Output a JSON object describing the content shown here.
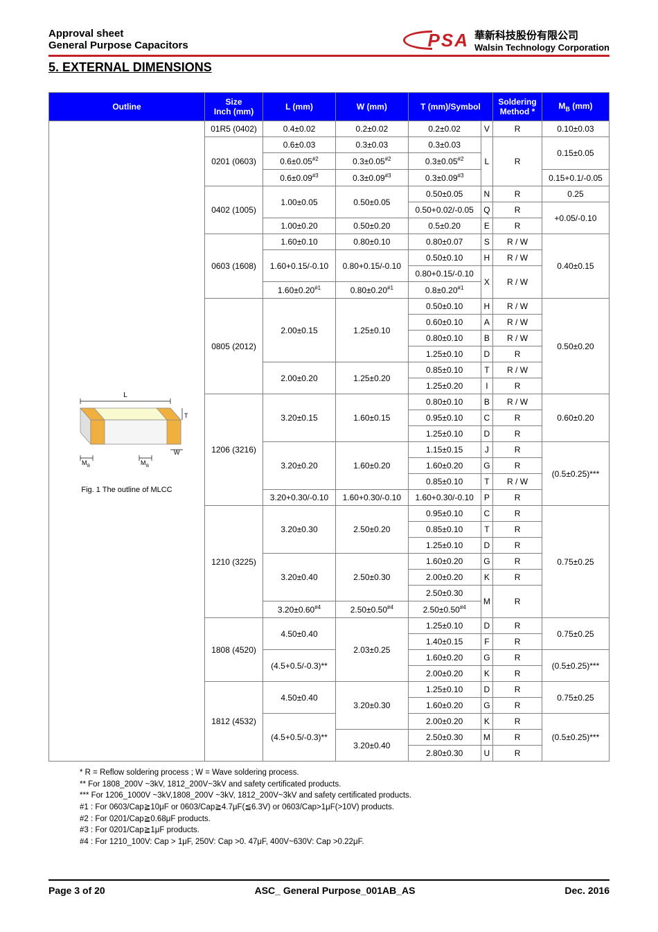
{
  "hdr": {
    "l1": "Approval sheet",
    "l2": "General Purpose Capacitors",
    "logo": "PSA",
    "co_cn": "華新科技股份有限公司",
    "co_en": "Walsin Technology Corporation"
  },
  "sect": "5. EXTERNAL DIMENSIONS",
  "th": {
    "outline": "Outline",
    "size": "Size\nInch (mm)",
    "L": "L (mm)",
    "W": "W (mm)",
    "T": "T (mm)/Symbol",
    "sold": "Soldering\nMethod *",
    "MB": "M",
    "MBsub": "B",
    "MB2": " (mm)"
  },
  "cap": "Fig. 1 The outline of MLCC",
  "rows": [
    {
      "size": "01R5 (0402)",
      "L": "0.4±0.02",
      "W": "0.2±0.02",
      "T": "0.2±0.02",
      "sym": "V",
      "sold": "R",
      "MB": "0.10±0.03"
    },
    {
      "size": "0201 (0603)",
      "sizeRs": 3,
      "L": "0.6±0.03",
      "W": "0.3±0.03",
      "T": "0.3±0.03",
      "symRs": 3,
      "sym": "L",
      "sold": "R",
      "soldRs": 3,
      "MB": "0.15±0.05",
      "MBRs": 2
    },
    {
      "L": "0.6±0.05",
      "Lsup": "#2",
      "W": "0.3±0.05",
      "Wsup": "#2",
      "T": "0.3±0.05",
      "Tsup": "#2"
    },
    {
      "L": "0.6±0.09",
      "Lsup": "#3",
      "W": "0.3±0.09",
      "Wsup": "#3",
      "T": "0.3±0.09",
      "Tsup": "#3",
      "MB": "0.15+0.1/-0.05"
    },
    {
      "size": "0402 (1005)",
      "sizeRs": 3,
      "L": "1.00±0.05",
      "LRs": 2,
      "W": "0.50±0.05",
      "WRs": 2,
      "T": "0.50±0.05",
      "sym": "N",
      "sold": "R",
      "MB": "0.25"
    },
    {
      "T": "0.50+0.02/-0.05",
      "sym": "Q",
      "sold": "R",
      "MB": "+0.05/-0.10",
      "MBRs": 2
    },
    {
      "L": "1.00±0.20",
      "W": "0.50±0.20",
      "T": "0.5±0.20",
      "sym": "E",
      "sold": "R"
    },
    {
      "size": "0603 (1608)",
      "sizeRs": 4,
      "L": "1.60±0.10",
      "W": "0.80±0.10",
      "T": "0.80±0.07",
      "sym": "S",
      "sold": "R / W",
      "MB": "0.40±0.15",
      "MBRs": 4
    },
    {
      "L": "1.60+0.15/-0.10",
      "LRs": 2,
      "W": "0.80+0.15/-0.10",
      "WRs": 2,
      "T": "0.50±0.10",
      "sym": "H",
      "sold": "R / W"
    },
    {
      "T": "0.80+0.15/-0.10",
      "sym": "X",
      "symRs": 2,
      "sold": "R / W",
      "soldRs": 2
    },
    {
      "L": "1.60±0.20",
      "Lsup": "#1",
      "W": "0.80±0.20",
      "Wsup": "#1",
      "T": "0.8±0.20",
      "Tsup": "#1"
    },
    {
      "size": "0805 (2012)",
      "sizeRs": 6,
      "L": "2.00±0.15",
      "LRs": 4,
      "W": "1.25±0.10",
      "WRs": 4,
      "T": "0.50±0.10",
      "sym": "H",
      "sold": "R / W",
      "MB": "0.50±0.20",
      "MBRs": 6
    },
    {
      "T": "0.60±0.10",
      "sym": "A",
      "sold": "R / W"
    },
    {
      "T": "0.80±0.10",
      "sym": "B",
      "sold": "R / W"
    },
    {
      "T": "1.25±0.10",
      "sym": "D",
      "sold": "R"
    },
    {
      "L": "2.00±0.20",
      "LRs": 2,
      "W": "1.25±0.20",
      "WRs": 2,
      "T": "0.85±0.10",
      "sym": "T",
      "sold": "R / W"
    },
    {
      "T": "1.25±0.20",
      "sym": "I",
      "sold": "R"
    },
    {
      "size": "1206 (3216)",
      "sizeRs": 7,
      "L": "3.20±0.15",
      "LRs": 3,
      "W": "1.60±0.15",
      "WRs": 3,
      "T": "0.80±0.10",
      "sym": "B",
      "sold": "R / W",
      "MB": "0.60±0.20",
      "MBRs": 3
    },
    {
      "T": "0.95±0.10",
      "sym": "C",
      "sold": "R"
    },
    {
      "T": "1.25±0.10",
      "sym": "D",
      "sold": "R"
    },
    {
      "L": "3.20±0.20",
      "LRs": 3,
      "W": "1.60±0.20",
      "WRs": 3,
      "T": "1.15±0.15",
      "sym": "J",
      "sold": "R",
      "MB": "(0.5±0.25)***",
      "MBRs": 4
    },
    {
      "T": "1.60±0.20",
      "sym": "G",
      "sold": "R"
    },
    {
      "T": "0.85±0.10",
      "sym": "T",
      "sold": "R / W"
    },
    {
      "L": "3.20+0.30/-0.10",
      "W": "1.60+0.30/-0.10",
      "T": "1.60+0.30/-0.10",
      "sym": "P",
      "sold": "R"
    },
    {
      "size": "1210 (3225)",
      "sizeRs": 7,
      "L": "3.20±0.30",
      "LRs": 3,
      "W": "2.50±0.20",
      "WRs": 3,
      "T": "0.95±0.10",
      "sym": "C",
      "sold": "R",
      "MB": "0.75±0.25",
      "MBRs": 7
    },
    {
      "T": "0.85±0.10",
      "sym": "T",
      "sold": "R"
    },
    {
      "T": "1.25±0.10",
      "sym": "D",
      "sold": "R"
    },
    {
      "L": "3.20±0.40",
      "LRs": 3,
      "W": "2.50±0.30",
      "WRs": 3,
      "T": "1.60±0.20",
      "sym": "G",
      "sold": "R"
    },
    {
      "T": "2.00±0.20",
      "sym": "K",
      "sold": "R"
    },
    {
      "T": "2.50±0.30",
      "sym": "M",
      "symRs": 2,
      "sold": "R",
      "soldRs": 2
    },
    {
      "L": "3.20±0.60",
      "Lsup": "#4",
      "W": "2.50±0.50",
      "Wsup": "#4",
      "T": "2.50±0.50",
      "Tsup": "#4"
    },
    {
      "size": "1808 (4520)",
      "sizeRs": 4,
      "L": "4.50±0.40",
      "LRs": 2,
      "W": "2.03±0.25",
      "WRs": 4,
      "T": "1.25±0.10",
      "sym": "D",
      "sold": "R",
      "MB": "0.75±0.25",
      "MBRs": 2
    },
    {
      "T": "1.40±0.15",
      "sym": "F",
      "sold": "R"
    },
    {
      "L": "(4.5+0.5/-0.3)**",
      "LRs": 2,
      "T": "1.60±0.20",
      "sym": "G",
      "sold": "R",
      "MB": "(0.5±0.25)***",
      "MBRs": 2
    },
    {
      "T": "2.00±0.20",
      "sym": "K",
      "sold": "R"
    },
    {
      "size": "1812 (4532)",
      "sizeRs": 5,
      "L": "4.50±0.40",
      "LRs": 2,
      "W": "3.20±0.30",
      "WRs": 3,
      "T": "1.25±0.10",
      "sym": "D",
      "sold": "R",
      "MB": "0.75±0.25",
      "MBRs": 2
    },
    {
      "T": "1.60±0.20",
      "sym": "G",
      "sold": "R"
    },
    {
      "L": "(4.5+0.5/-0.3)**",
      "LRs": 3,
      "T": "2.00±0.20",
      "sym": "K",
      "sold": "R",
      "MB": "(0.5±0.25)***",
      "MBRs": 3
    },
    {
      "W": "3.20±0.40",
      "WRs": 2,
      "T": "2.50±0.30",
      "sym": "M",
      "sold": "R"
    },
    {
      "T": "2.80±0.30",
      "sym": "U",
      "sold": "R"
    }
  ],
  "notes": [
    "* R = Reflow soldering process ; W = Wave soldering process.",
    "** For 1808_200V ~3kV, 1812_200V~3kV and safety certificated products.",
    "*** For 1206_1000V ~3kV,1808_200V ~3kV, 1812_200V~3kV and safety certificated products.",
    "#1 : For 0603/Cap≧10μF or 0603/Cap≧4.7μF(≦6.3V) or 0603/Cap>1μF(>10V) products.",
    "#2 : For 0201/Cap≧0.68μF products.",
    "#3 : For 0201/Cap≧1μF products.",
    "#4 : For 1210_100V: Cap > 1μF, 250V: Cap >0. 47μF, 400V~630V: Cap >0.22μF."
  ],
  "ftr": {
    "page": "Page 3 of 20",
    "doc": "ASC_ General Purpose_001AB_AS",
    "date": "Dec. 2016"
  },
  "colors": {
    "accent": "#c42127",
    "th": "#0000ff",
    "bd": "#808080"
  }
}
